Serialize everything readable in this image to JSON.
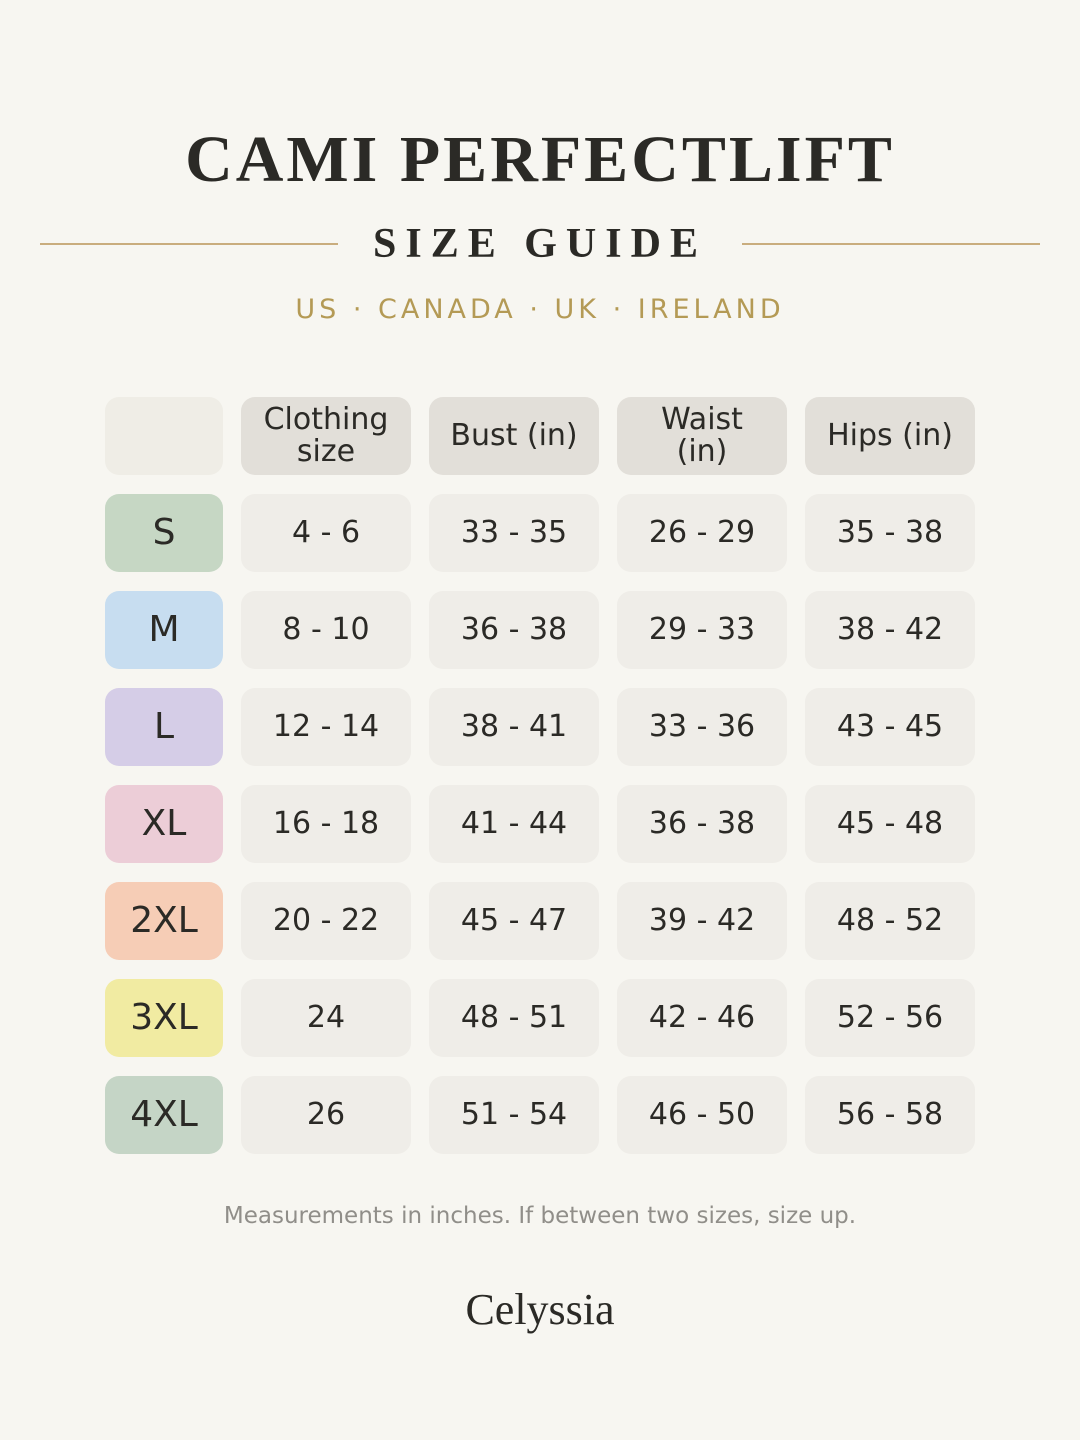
{
  "header": {
    "title": "CAMI PERFECTLIFT",
    "subtitle": "SIZE GUIDE",
    "regions": "US · CANADA · UK · IRELAND"
  },
  "table": {
    "columns": [
      "Clothing size",
      "Bust (in)",
      "Waist (in)",
      "Hips (in)"
    ],
    "rows": [
      [
        "S",
        "4 - 6",
        "33 - 35",
        "26 - 29",
        "35 - 38"
      ],
      [
        "M",
        "8 - 10",
        "36 - 38",
        "29 - 33",
        "38 - 42"
      ],
      [
        "L",
        "12 - 14",
        "38 - 41",
        "33 - 36",
        "43 - 45"
      ],
      [
        "XL",
        "16 - 18",
        "41 - 44",
        "36 - 38",
        "45 - 48"
      ],
      [
        "2XL",
        "20 - 22",
        "45 - 47",
        "39 - 42",
        "48 - 52"
      ],
      [
        "3XL",
        "24",
        "48 - 51",
        "42 - 46",
        "52 - 56"
      ],
      [
        "4XL",
        "26",
        "51 - 54",
        "46 - 50",
        "56 - 58"
      ]
    ]
  },
  "note": "Measurements in inches. If between two sizes, size up.",
  "brand": "Celyssia"
}
